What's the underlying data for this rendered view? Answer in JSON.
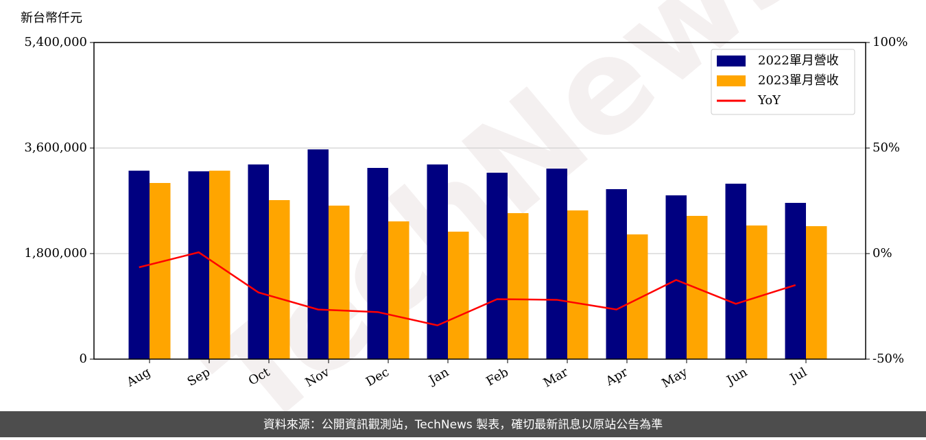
{
  "chart_data": {
    "type": "bar_line",
    "y_label": "新台幣仟元",
    "watermark": "TechNews",
    "footer": "資料來源：公開資訊觀測站，TechNews 製表，確切最新訊息以原站公告為準",
    "categories": [
      "Aug",
      "Sep",
      "Oct",
      "Nov",
      "Dec",
      "Jan",
      "Feb",
      "Mar",
      "Apr",
      "May",
      "Jun",
      "Jul"
    ],
    "series": [
      {
        "name": "2022單月營收",
        "color": "#000080",
        "type": "bar",
        "values": [
          3214000,
          3203000,
          3320000,
          3577000,
          3261000,
          3320000,
          3179000,
          3249000,
          2899000,
          2793000,
          2992000,
          2665000
        ]
      },
      {
        "name": "2023單月營收",
        "color": "#ffa500",
        "type": "bar",
        "values": [
          3004000,
          3214000,
          2712000,
          2618000,
          2349000,
          2174000,
          2490000,
          2536000,
          2127000,
          2443000,
          2279000,
          2268000
        ]
      },
      {
        "name": "YoY",
        "color": "#ff0000",
        "type": "line",
        "axis": "y2",
        "values": [
          -6.5,
          0.6,
          -18.4,
          -26.5,
          -27.7,
          -34,
          -21.6,
          -21.9,
          -26.5,
          -12.5,
          -23.8,
          -14.9
        ]
      }
    ],
    "ylim": [
      0,
      5400000
    ],
    "yticks": [
      0,
      {
        "value": 1800000,
        "label": "1,800,000"
      },
      {
        "value": 3600000,
        "label": "3,600,000"
      },
      {
        "value": 5400000,
        "label": "5,400,000"
      }
    ],
    "y2lim": [
      -50,
      100
    ],
    "y2ticks": [
      {
        "value": -50,
        "label": "-50%"
      },
      {
        "value": 0,
        "label": "0%"
      },
      {
        "value": 50,
        "label": "50%"
      },
      {
        "value": 100,
        "label": "100%"
      }
    ],
    "grid": true,
    "legend": "upper right"
  }
}
